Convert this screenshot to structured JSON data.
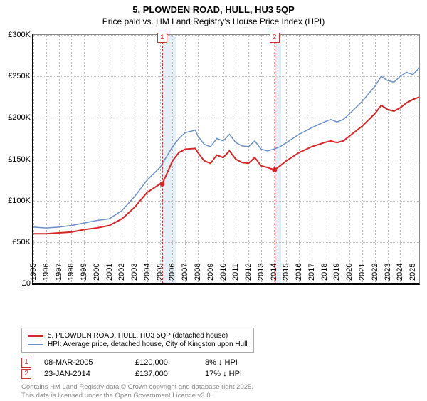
{
  "title": {
    "line1": "5, PLOWDEN ROAD, HULL, HU3 5QP",
    "line2": "Price paid vs. HM Land Registry's House Price Index (HPI)"
  },
  "chart": {
    "type": "line",
    "background_color": "#ffffff",
    "grid_color": "#bbbbbb",
    "axis_color": "#000000",
    "shade_color": "#e6eef7",
    "xlim": [
      1995,
      2025.5
    ],
    "ylim": [
      0,
      300000
    ],
    "ytick_step": 50000,
    "y_ticks": [
      "£0",
      "£50K",
      "£100K",
      "£150K",
      "£200K",
      "£250K",
      "£300K"
    ],
    "x_ticks": [
      1995,
      1996,
      1997,
      1998,
      1999,
      2000,
      2001,
      2002,
      2003,
      2004,
      2005,
      2006,
      2007,
      2008,
      2009,
      2010,
      2011,
      2012,
      2013,
      2014,
      2015,
      2016,
      2017,
      2018,
      2019,
      2020,
      2021,
      2022,
      2023,
      2024,
      2025
    ],
    "shaded_ranges": [
      [
        2005.18,
        2006.3
      ],
      [
        2014.06,
        2014.6
      ]
    ],
    "marker_lines": [
      {
        "x": 2005.18,
        "label": "1"
      },
      {
        "x": 2014.06,
        "label": "2"
      }
    ],
    "series": [
      {
        "id": "price_paid",
        "label": "5, PLOWDEN ROAD, HULL, HU3 5QP (detached house)",
        "color": "#d62728",
        "line_width": 2,
        "points": [
          [
            1995,
            60000
          ],
          [
            1996,
            60000
          ],
          [
            1997,
            61000
          ],
          [
            1998,
            62000
          ],
          [
            1999,
            65000
          ],
          [
            2000,
            67000
          ],
          [
            2001,
            70000
          ],
          [
            2002,
            78000
          ],
          [
            2003,
            92000
          ],
          [
            2004,
            110000
          ],
          [
            2005,
            120000
          ],
          [
            2005.18,
            120000
          ],
          [
            2006,
            148000
          ],
          [
            2006.5,
            158000
          ],
          [
            2007,
            162000
          ],
          [
            2007.8,
            163000
          ],
          [
            2008,
            158000
          ],
          [
            2008.5,
            148000
          ],
          [
            2009,
            145000
          ],
          [
            2009.5,
            155000
          ],
          [
            2010,
            152000
          ],
          [
            2010.5,
            160000
          ],
          [
            2011,
            150000
          ],
          [
            2011.5,
            146000
          ],
          [
            2012,
            145000
          ],
          [
            2012.5,
            152000
          ],
          [
            2013,
            142000
          ],
          [
            2013.5,
            140000
          ],
          [
            2014.06,
            137000
          ],
          [
            2014.5,
            142000
          ],
          [
            2015,
            148000
          ],
          [
            2016,
            158000
          ],
          [
            2017,
            165000
          ],
          [
            2018,
            170000
          ],
          [
            2018.5,
            172000
          ],
          [
            2019,
            170000
          ],
          [
            2019.5,
            172000
          ],
          [
            2020,
            178000
          ],
          [
            2021,
            190000
          ],
          [
            2022,
            205000
          ],
          [
            2022.5,
            215000
          ],
          [
            2023,
            210000
          ],
          [
            2023.5,
            208000
          ],
          [
            2024,
            212000
          ],
          [
            2024.5,
            218000
          ],
          [
            2025,
            222000
          ],
          [
            2025.5,
            225000
          ]
        ],
        "markers": [
          [
            2005.18,
            120000
          ],
          [
            2014.06,
            137000
          ]
        ]
      },
      {
        "id": "hpi",
        "label": "HPI: Average price, detached house, City of Kingston upon Hull",
        "color": "#6a8fc5",
        "line_width": 1.5,
        "points": [
          [
            1995,
            68000
          ],
          [
            1996,
            67000
          ],
          [
            1997,
            68000
          ],
          [
            1998,
            70000
          ],
          [
            1999,
            73000
          ],
          [
            2000,
            76000
          ],
          [
            2001,
            78000
          ],
          [
            2002,
            88000
          ],
          [
            2003,
            105000
          ],
          [
            2004,
            125000
          ],
          [
            2005,
            140000
          ],
          [
            2006,
            165000
          ],
          [
            2006.5,
            175000
          ],
          [
            2007,
            182000
          ],
          [
            2007.8,
            185000
          ],
          [
            2008,
            178000
          ],
          [
            2008.5,
            168000
          ],
          [
            2009,
            165000
          ],
          [
            2009.5,
            175000
          ],
          [
            2010,
            172000
          ],
          [
            2010.5,
            180000
          ],
          [
            2011,
            170000
          ],
          [
            2011.5,
            166000
          ],
          [
            2012,
            165000
          ],
          [
            2012.5,
            172000
          ],
          [
            2013,
            162000
          ],
          [
            2013.5,
            160000
          ],
          [
            2014,
            162000
          ],
          [
            2014.5,
            165000
          ],
          [
            2015,
            170000
          ],
          [
            2016,
            180000
          ],
          [
            2017,
            188000
          ],
          [
            2018,
            195000
          ],
          [
            2018.5,
            198000
          ],
          [
            2019,
            195000
          ],
          [
            2019.5,
            198000
          ],
          [
            2020,
            205000
          ],
          [
            2021,
            220000
          ],
          [
            2022,
            238000
          ],
          [
            2022.5,
            250000
          ],
          [
            2023,
            245000
          ],
          [
            2023.5,
            243000
          ],
          [
            2024,
            250000
          ],
          [
            2024.5,
            255000
          ],
          [
            2025,
            252000
          ],
          [
            2025.5,
            260000
          ]
        ]
      }
    ]
  },
  "legend": {
    "rows": [
      {
        "color": "#d62728",
        "text": "5, PLOWDEN ROAD, HULL, HU3 5QP (detached house)"
      },
      {
        "color": "#6a8fc5",
        "text": "HPI: Average price, detached house, City of Kingston upon Hull"
      }
    ]
  },
  "sales": [
    {
      "num": "1",
      "date": "08-MAR-2005",
      "price": "£120,000",
      "delta": "8% ↓ HPI"
    },
    {
      "num": "2",
      "date": "23-JAN-2014",
      "price": "£137,000",
      "delta": "17% ↓ HPI"
    }
  ],
  "copyright": {
    "line1": "Contains HM Land Registry data © Crown copyright and database right 2025.",
    "line2": "This data is licensed under the Open Government Licence v3.0."
  }
}
